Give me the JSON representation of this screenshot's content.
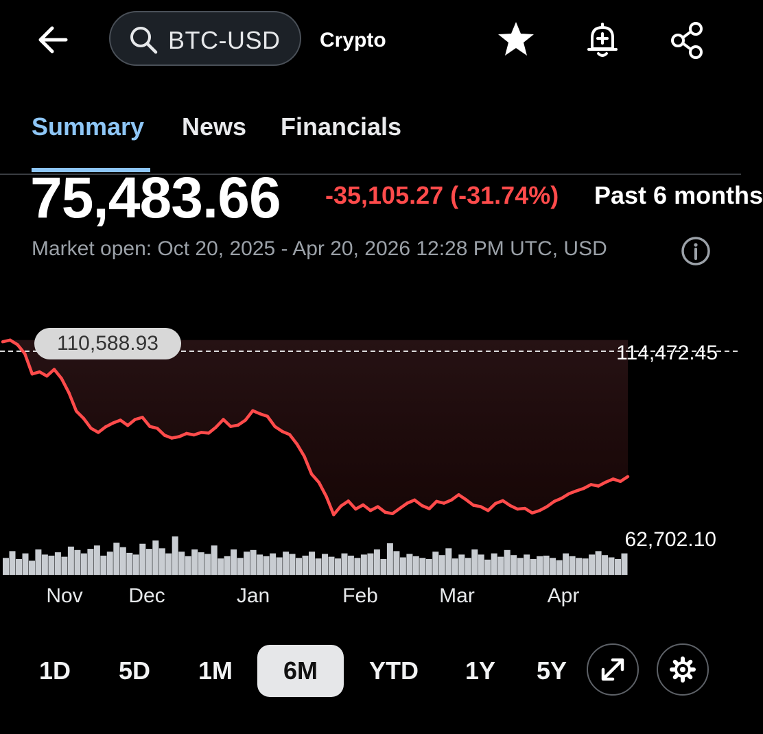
{
  "header": {
    "search_value": "BTC-USD",
    "category": "Crypto",
    "icons": [
      "back-arrow-icon",
      "search-icon",
      "star-icon",
      "bell-add-icon",
      "share-icon"
    ]
  },
  "tabs": [
    {
      "label": "Summary",
      "active": true
    },
    {
      "label": "News",
      "active": false
    },
    {
      "label": "Financials",
      "active": false
    }
  ],
  "quote": {
    "price": "75,483.66",
    "change": "-35,105.27 (-31.74%)",
    "period": "Past 6 months",
    "market_status": "Market open: Oct 20, 2025 - Apr 20, 2026 12:28 PM UTC, USD"
  },
  "range_buttons": [
    "1D",
    "5D",
    "1M",
    "6M",
    "YTD",
    "1Y",
    "5Y"
  ],
  "selected_range": "6M",
  "colors": {
    "accent": "#8ec6f6",
    "negative": "#ff4b4b",
    "positive": "#22c08b"
  },
  "chart_data": {
    "type": "line",
    "x_labels": [
      "Nov",
      "Dec",
      "Jan",
      "Feb",
      "Mar",
      "Apr"
    ],
    "previous_close": "114,472.45",
    "start_label": "110,588.93",
    "low_label": "62,702.10",
    "series": [
      {
        "values": [
          114000,
          114472,
          113200,
          110589,
          104800,
          105400,
          104200,
          106100,
          103500,
          99400,
          94200,
          92100,
          89300,
          88100,
          89700,
          90800,
          91600,
          90100,
          91800,
          92400,
          89800,
          89300,
          87300,
          86500,
          86900,
          87800,
          87400,
          88100,
          87900,
          89600,
          91800,
          89800,
          90200,
          91600,
          94300,
          93400,
          92700,
          89800,
          88400,
          87500,
          84800,
          81300,
          76200,
          73800,
          69800,
          64600,
          67100,
          68500,
          66200,
          67400,
          65800,
          66900,
          65300,
          64900,
          66400,
          67900,
          68800,
          67200,
          66300,
          68400,
          67900,
          68800,
          70300,
          68900,
          67300,
          66900,
          65800,
          67800,
          68600,
          67200,
          66200,
          66400,
          65100,
          65800,
          66900,
          68400,
          69300,
          70600,
          71400,
          72100,
          73200,
          72800,
          73900,
          74800,
          74100,
          75483.66
        ]
      },
      {
        "name": "",
        "values": []
      }
    ],
    "volume": [
      30,
      42,
      28,
      38,
      25,
      45,
      36,
      34,
      40,
      32,
      50,
      44,
      38,
      46,
      52,
      34,
      41,
      57,
      49,
      39,
      36,
      55,
      46,
      61,
      47,
      38,
      68,
      41,
      33,
      45,
      40,
      37,
      52,
      29,
      33,
      45,
      30,
      41,
      44,
      36,
      33,
      38,
      31,
      41,
      37,
      30,
      34,
      41,
      29,
      37,
      32,
      29,
      38,
      34,
      30,
      36,
      38,
      45,
      28,
      56,
      42,
      31,
      37,
      33,
      30,
      28,
      41,
      35,
      47,
      29,
      36,
      30,
      45,
      36,
      27,
      38,
      32,
      44,
      35,
      30,
      36,
      28,
      33,
      34,
      30,
      26,
      38,
      33,
      30,
      29,
      36,
      42,
      35,
      31,
      28,
      38
    ],
    "grid": false,
    "legend": "none"
  }
}
